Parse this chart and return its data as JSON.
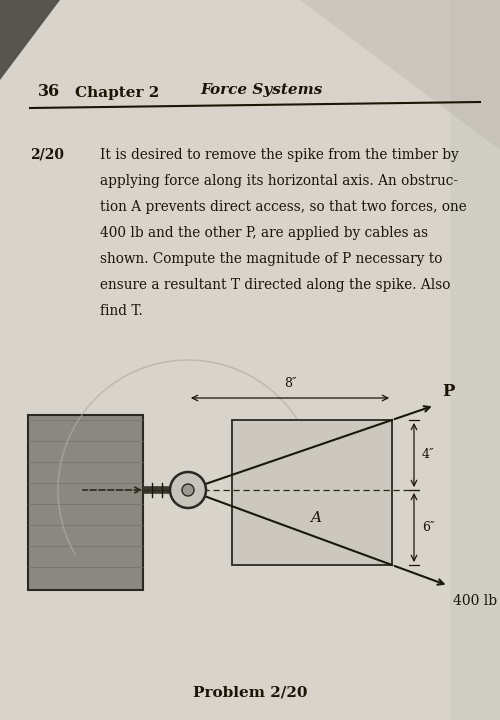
{
  "bg_color": "#b0aba0",
  "page_bg": "#d8d4cc",
  "page_bg2": "#c8c4bc",
  "header_36": "36",
  "header_ch": "Chapter 2",
  "header_fs": "Force Systems",
  "problem_num": "2/20",
  "problem_lines": [
    "It is desired to remove the spike from the timber by",
    "applying force along its horizontal axis. An obstruc-",
    "tion A prevents direct access, so that two forces, one",
    "400 lb and the other P, are applied by cables as",
    "shown. Compute the magnitude of P necessary to",
    "ensure a resultant T directed along the spike. Also",
    "find T."
  ],
  "caption": "Problem 2/20",
  "text_color": "#1a1505",
  "line_color": "#1a1505",
  "timber_fc": "#8a8880",
  "timber_ec": "#2a2820",
  "box_fc": "#ccc8c0",
  "box_ec": "#2a2820",
  "spike_color": "#3a3830",
  "circle_fc": "#c8c4bc",
  "circle_ec": "#2a2820",
  "arc_color": "#b0aca4",
  "dim_color": "#1a1505"
}
